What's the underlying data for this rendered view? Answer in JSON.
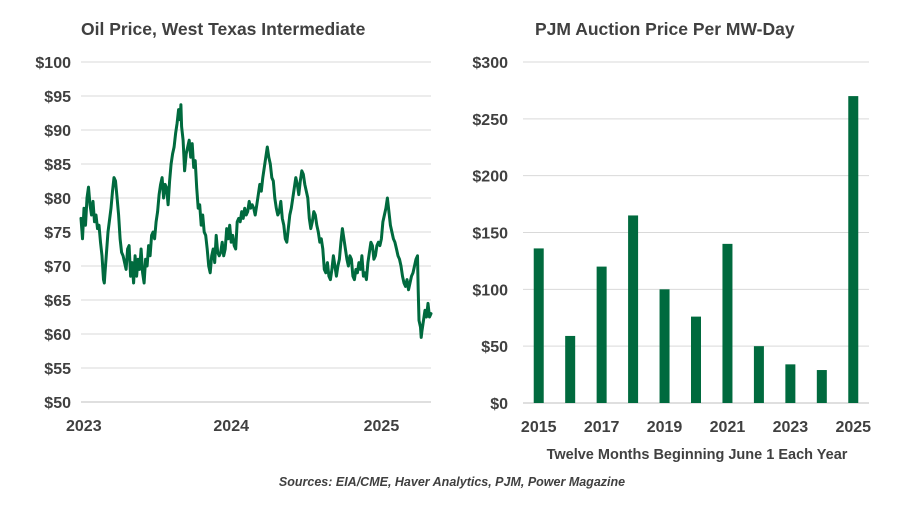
{
  "colors": {
    "series": "#006a3e",
    "grid": "#d9d9d9",
    "text": "#404040"
  },
  "source": "Sources: EIA/CME, Haver Analytics, PJM, Power Magazine",
  "chart_data": [
    {
      "type": "line",
      "title": "Oil Price, West Texas Intermediate",
      "xlabel": "",
      "ylabel": "",
      "ylim": [
        50,
        100
      ],
      "xlim": [
        2023.0,
        2025.33
      ],
      "y_ticks": [
        50,
        55,
        60,
        65,
        70,
        75,
        80,
        85,
        90,
        95,
        100
      ],
      "y_tick_labels": [
        "$50",
        "$55",
        "$60",
        "$65",
        "$70",
        "$75",
        "$80",
        "$85",
        "$90",
        "$95",
        "$100"
      ],
      "x_ticks": [
        2023,
        2024,
        2025
      ],
      "x_tick_labels": [
        "2023",
        "2024",
        "2025"
      ],
      "grid": true,
      "series": [
        {
          "name": "WTI",
          "points": [
            [
              2023.0,
              77
            ],
            [
              2023.01,
              74
            ],
            [
              2023.02,
              78.5
            ],
            [
              2023.03,
              76
            ],
            [
              2023.04,
              80
            ],
            [
              2023.05,
              81.6
            ],
            [
              2023.06,
              79
            ],
            [
              2023.07,
              77.5
            ],
            [
              2023.08,
              79.5
            ],
            [
              2023.09,
              76.5
            ],
            [
              2023.1,
              77.5
            ],
            [
              2023.11,
              75.5
            ],
            [
              2023.12,
              76
            ],
            [
              2023.13,
              73.5
            ],
            [
              2023.14,
              71.5
            ],
            [
              2023.15,
              68
            ],
            [
              2023.155,
              67.5
            ],
            [
              2023.16,
              69
            ],
            [
              2023.17,
              72
            ],
            [
              2023.18,
              75
            ],
            [
              2023.2,
              78.5
            ],
            [
              2023.21,
              81
            ],
            [
              2023.22,
              83
            ],
            [
              2023.23,
              82.5
            ],
            [
              2023.24,
              80
            ],
            [
              2023.25,
              77.5
            ],
            [
              2023.26,
              74
            ],
            [
              2023.27,
              72
            ],
            [
              2023.28,
              71.5
            ],
            [
              2023.3,
              69.5
            ],
            [
              2023.31,
              72.5
            ],
            [
              2023.32,
              73
            ],
            [
              2023.33,
              68.5
            ],
            [
              2023.34,
              70.5
            ],
            [
              2023.35,
              67.5
            ],
            [
              2023.36,
              71.5
            ],
            [
              2023.37,
              68.5
            ],
            [
              2023.38,
              71
            ],
            [
              2023.39,
              69.5
            ],
            [
              2023.4,
              72.5
            ],
            [
              2023.41,
              69
            ],
            [
              2023.42,
              67.5
            ],
            [
              2023.43,
              71
            ],
            [
              2023.44,
              70
            ],
            [
              2023.45,
              73
            ],
            [
              2023.46,
              71.5
            ],
            [
              2023.47,
              74.5
            ],
            [
              2023.48,
              75
            ],
            [
              2023.49,
              74
            ],
            [
              2023.5,
              76.5
            ],
            [
              2023.51,
              78
            ],
            [
              2023.52,
              80.5
            ],
            [
              2023.53,
              82
            ],
            [
              2023.54,
              83
            ],
            [
              2023.55,
              80
            ],
            [
              2023.56,
              82
            ],
            [
              2023.57,
              81.5
            ],
            [
              2023.58,
              79
            ],
            [
              2023.59,
              82.5
            ],
            [
              2023.6,
              85
            ],
            [
              2023.61,
              86.5
            ],
            [
              2023.62,
              87.5
            ],
            [
              2023.63,
              89.5
            ],
            [
              2023.64,
              91
            ],
            [
              2023.65,
              93
            ],
            [
              2023.66,
              91.5
            ],
            [
              2023.665,
              93.7
            ],
            [
              2023.67,
              90.5
            ],
            [
              2023.68,
              88.5
            ],
            [
              2023.69,
              84
            ],
            [
              2023.7,
              86.5
            ],
            [
              2023.71,
              87.5
            ],
            [
              2023.72,
              88.5
            ],
            [
              2023.73,
              86
            ],
            [
              2023.74,
              88
            ],
            [
              2023.75,
              84.5
            ],
            [
              2023.76,
              85.5
            ],
            [
              2023.77,
              81.5
            ],
            [
              2023.78,
              78.5
            ],
            [
              2023.79,
              79
            ],
            [
              2023.8,
              76
            ],
            [
              2023.81,
              77.5
            ],
            [
              2023.82,
              75
            ],
            [
              2023.83,
              74.5
            ],
            [
              2023.84,
              72.5
            ],
            [
              2023.85,
              70
            ],
            [
              2023.86,
              69
            ],
            [
              2023.87,
              71.5
            ],
            [
              2023.88,
              72.5
            ],
            [
              2023.89,
              70.5
            ],
            [
              2023.9,
              74.5
            ],
            [
              2023.91,
              72
            ],
            [
              2023.92,
              71.5
            ],
            [
              2023.93,
              72
            ],
            [
              2023.94,
              73.5
            ],
            [
              2023.95,
              71.5
            ],
            [
              2023.96,
              72.5
            ],
            [
              2023.97,
              75.5
            ],
            [
              2023.98,
              74
            ],
            [
              2023.99,
              76
            ],
            [
              2024.0,
              73.5
            ],
            [
              2024.01,
              74.5
            ],
            [
              2024.02,
              73
            ],
            [
              2024.03,
              72.5
            ],
            [
              2024.04,
              76.5
            ],
            [
              2024.05,
              77
            ],
            [
              2024.06,
              76.5
            ],
            [
              2024.07,
              78
            ],
            [
              2024.08,
              77
            ],
            [
              2024.09,
              78.5
            ],
            [
              2024.1,
              77.5
            ],
            [
              2024.11,
              78
            ],
            [
              2024.12,
              79.5
            ],
            [
              2024.13,
              78.5
            ],
            [
              2024.14,
              79
            ],
            [
              2024.15,
              78.5
            ],
            [
              2024.16,
              77.5
            ],
            [
              2024.17,
              79
            ],
            [
              2024.18,
              80.5
            ],
            [
              2024.19,
              82
            ],
            [
              2024.2,
              81
            ],
            [
              2024.21,
              83
            ],
            [
              2024.22,
              84.5
            ],
            [
              2024.23,
              86
            ],
            [
              2024.24,
              87.5
            ],
            [
              2024.25,
              86
            ],
            [
              2024.26,
              85
            ],
            [
              2024.27,
              83
            ],
            [
              2024.28,
              82.5
            ],
            [
              2024.29,
              80
            ],
            [
              2024.3,
              78.5
            ],
            [
              2024.31,
              77.5
            ],
            [
              2024.32,
              78
            ],
            [
              2024.33,
              79.5
            ],
            [
              2024.34,
              77
            ],
            [
              2024.35,
              76
            ],
            [
              2024.36,
              74
            ],
            [
              2024.37,
              73.5
            ],
            [
              2024.38,
              75.5
            ],
            [
              2024.39,
              77.5
            ],
            [
              2024.4,
              78.5
            ],
            [
              2024.41,
              80
            ],
            [
              2024.42,
              81.5
            ],
            [
              2024.43,
              83
            ],
            [
              2024.44,
              82
            ],
            [
              2024.45,
              80.5
            ],
            [
              2024.46,
              82.5
            ],
            [
              2024.47,
              84
            ],
            [
              2024.48,
              83.5
            ],
            [
              2024.49,
              82
            ],
            [
              2024.5,
              81
            ],
            [
              2024.51,
              80
            ],
            [
              2024.52,
              77
            ],
            [
              2024.53,
              75.5
            ],
            [
              2024.54,
              76.5
            ],
            [
              2024.55,
              78
            ],
            [
              2024.56,
              77.5
            ],
            [
              2024.57,
              76
            ],
            [
              2024.58,
              75
            ],
            [
              2024.59,
              73.5
            ],
            [
              2024.6,
              74
            ],
            [
              2024.61,
              72.5
            ],
            [
              2024.62,
              69.5
            ],
            [
              2024.63,
              69
            ],
            [
              2024.64,
              70.5
            ],
            [
              2024.65,
              68.5
            ],
            [
              2024.66,
              68
            ],
            [
              2024.67,
              69.5
            ],
            [
              2024.68,
              71.5
            ],
            [
              2024.69,
              70
            ],
            [
              2024.7,
              68.5
            ],
            [
              2024.71,
              70
            ],
            [
              2024.72,
              71
            ],
            [
              2024.73,
              73.5
            ],
            [
              2024.74,
              75.5
            ],
            [
              2024.75,
              74
            ],
            [
              2024.76,
              72.5
            ],
            [
              2024.77,
              71
            ],
            [
              2024.78,
              70
            ],
            [
              2024.79,
              71.5
            ],
            [
              2024.8,
              71
            ],
            [
              2024.81,
              68.5
            ],
            [
              2024.82,
              68
            ],
            [
              2024.83,
              69.5
            ],
            [
              2024.84,
              69
            ],
            [
              2024.85,
              70.5
            ],
            [
              2024.86,
              69.5
            ],
            [
              2024.87,
              71.5
            ],
            [
              2024.88,
              68.5
            ],
            [
              2024.89,
              69
            ],
            [
              2024.9,
              68
            ],
            [
              2024.91,
              70.5
            ],
            [
              2024.92,
              72
            ],
            [
              2024.93,
              73.5
            ],
            [
              2024.94,
              73
            ],
            [
              2024.95,
              71
            ],
            [
              2024.96,
              71.5
            ],
            [
              2024.97,
              73
            ],
            [
              2024.98,
              73.5
            ],
            [
              2024.99,
              73
            ],
            [
              2025.0,
              74
            ],
            [
              2025.01,
              76.5
            ],
            [
              2025.02,
              77.5
            ],
            [
              2025.03,
              78.5
            ],
            [
              2025.04,
              80
            ],
            [
              2025.05,
              78
            ],
            [
              2025.06,
              76
            ],
            [
              2025.07,
              75
            ],
            [
              2025.08,
              74
            ],
            [
              2025.09,
              73.5
            ],
            [
              2025.1,
              72.5
            ],
            [
              2025.11,
              71.5
            ],
            [
              2025.12,
              71
            ],
            [
              2025.13,
              70
            ],
            [
              2025.14,
              68.5
            ],
            [
              2025.15,
              67.5
            ],
            [
              2025.16,
              67
            ],
            [
              2025.17,
              68
            ],
            [
              2025.18,
              66.5
            ],
            [
              2025.19,
              67.5
            ],
            [
              2025.2,
              68.5
            ],
            [
              2025.21,
              69
            ],
            [
              2025.22,
              70
            ],
            [
              2025.23,
              71
            ],
            [
              2025.24,
              71.5
            ],
            [
              2025.245,
              66.5
            ],
            [
              2025.25,
              62
            ],
            [
              2025.26,
              61
            ],
            [
              2025.265,
              59.5
            ],
            [
              2025.27,
              60.5
            ],
            [
              2025.28,
              62
            ],
            [
              2025.29,
              63.5
            ],
            [
              2025.3,
              62.5
            ],
            [
              2025.31,
              64.5
            ],
            [
              2025.32,
              62.5
            ],
            [
              2025.33,
              63
            ]
          ]
        }
      ]
    },
    {
      "type": "bar",
      "title": "PJM Auction Price Per MW-Day",
      "xlabel": "Twelve Months Beginning June 1 Each Year",
      "ylabel": "",
      "ylim": [
        0,
        300
      ],
      "y_ticks": [
        0,
        50,
        100,
        150,
        200,
        250,
        300
      ],
      "y_tick_labels": [
        "$0",
        "$50",
        "$100",
        "$150",
        "$200",
        "$250",
        "$300"
      ],
      "categories": [
        "2015",
        "2016",
        "2017",
        "2018",
        "2019",
        "2020",
        "2021",
        "2022",
        "2023",
        "2024",
        "2025"
      ],
      "x_tick_labels_shown": [
        "2015",
        "2017",
        "2019",
        "2021",
        "2023",
        "2025"
      ],
      "values": [
        136,
        59,
        120,
        165,
        100,
        76,
        140,
        50,
        34,
        29,
        270
      ],
      "grid": true
    }
  ]
}
